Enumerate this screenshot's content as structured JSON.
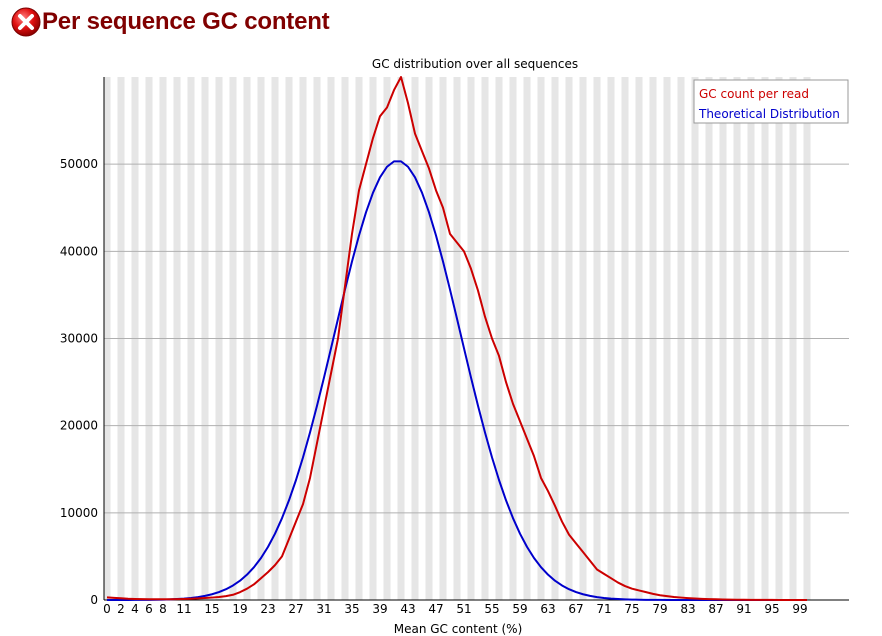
{
  "header": {
    "status_icon": "error-x-icon",
    "title": "Per sequence GC content"
  },
  "colors": {
    "gc_count": "#cc0000",
    "theoretical": "#0000cc",
    "title": "#800000",
    "stripe": "#e6e6e6",
    "grid": "#b0b0b0"
  },
  "chart_data": {
    "type": "line",
    "title": "GC distribution over all sequences",
    "xlabel": "Mean GC content (%)",
    "ylabel": "",
    "xlim": [
      0,
      100
    ],
    "ylim": [
      0,
      60000
    ],
    "x_ticks": [
      0,
      2,
      4,
      6,
      8,
      11,
      15,
      19,
      23,
      27,
      31,
      35,
      39,
      43,
      47,
      51,
      55,
      59,
      63,
      67,
      71,
      75,
      79,
      83,
      87,
      91,
      95,
      99
    ],
    "y_ticks": [
      0,
      10000,
      20000,
      30000,
      40000,
      50000
    ],
    "grid": true,
    "legend_position": "top-right",
    "series": [
      {
        "name": "GC count per read",
        "color": "#cc0000",
        "points": [
          [
            0,
            300
          ],
          [
            1,
            250
          ],
          [
            2,
            200
          ],
          [
            3,
            150
          ],
          [
            4,
            120
          ],
          [
            5,
            100
          ],
          [
            6,
            90
          ],
          [
            7,
            80
          ],
          [
            8,
            80
          ],
          [
            9,
            90
          ],
          [
            10,
            100
          ],
          [
            11,
            120
          ],
          [
            12,
            150
          ],
          [
            13,
            180
          ],
          [
            14,
            230
          ],
          [
            15,
            280
          ],
          [
            16,
            350
          ],
          [
            17,
            450
          ],
          [
            18,
            600
          ],
          [
            19,
            900
          ],
          [
            20,
            1300
          ],
          [
            21,
            1800
          ],
          [
            22,
            2500
          ],
          [
            23,
            3200
          ],
          [
            24,
            4000
          ],
          [
            25,
            5000
          ],
          [
            26,
            7000
          ],
          [
            27,
            9000
          ],
          [
            28,
            11000
          ],
          [
            29,
            14000
          ],
          [
            30,
            18000
          ],
          [
            31,
            22000
          ],
          [
            32,
            26000
          ],
          [
            33,
            30000
          ],
          [
            34,
            36000
          ],
          [
            35,
            42000
          ],
          [
            36,
            47000
          ],
          [
            37,
            50000
          ],
          [
            38,
            53000
          ],
          [
            39,
            55500
          ],
          [
            40,
            56500
          ],
          [
            41,
            58500
          ],
          [
            42,
            60000
          ],
          [
            43,
            57000
          ],
          [
            44,
            53500
          ],
          [
            45,
            51500
          ],
          [
            46,
            49500
          ],
          [
            47,
            47000
          ],
          [
            48,
            45000
          ],
          [
            49,
            42000
          ],
          [
            50,
            41000
          ],
          [
            51,
            40000
          ],
          [
            52,
            38000
          ],
          [
            53,
            35500
          ],
          [
            54,
            32500
          ],
          [
            55,
            30000
          ],
          [
            56,
            28000
          ],
          [
            57,
            25000
          ],
          [
            58,
            22500
          ],
          [
            59,
            20500
          ],
          [
            60,
            18500
          ],
          [
            61,
            16500
          ],
          [
            62,
            14000
          ],
          [
            63,
            12500
          ],
          [
            64,
            10800
          ],
          [
            65,
            9000
          ],
          [
            66,
            7500
          ],
          [
            67,
            6500
          ],
          [
            68,
            5500
          ],
          [
            69,
            4500
          ],
          [
            70,
            3500
          ],
          [
            71,
            3000
          ],
          [
            72,
            2500
          ],
          [
            73,
            2000
          ],
          [
            74,
            1600
          ],
          [
            75,
            1300
          ],
          [
            76,
            1100
          ],
          [
            77,
            900
          ],
          [
            78,
            700
          ],
          [
            79,
            550
          ],
          [
            80,
            450
          ],
          [
            81,
            350
          ],
          [
            82,
            280
          ],
          [
            83,
            220
          ],
          [
            84,
            170
          ],
          [
            85,
            130
          ],
          [
            86,
            100
          ],
          [
            87,
            80
          ],
          [
            88,
            60
          ],
          [
            89,
            45
          ],
          [
            90,
            30
          ],
          [
            91,
            25
          ],
          [
            92,
            20
          ],
          [
            93,
            15
          ],
          [
            94,
            10
          ],
          [
            95,
            8
          ],
          [
            96,
            6
          ],
          [
            97,
            5
          ],
          [
            98,
            4
          ],
          [
            99,
            3
          ],
          [
            100,
            2
          ]
        ]
      },
      {
        "name": "Theoretical Distribution",
        "color": "#0000cc",
        "mean": 41.5,
        "sd": 9.0,
        "peak": 50400
      }
    ]
  }
}
